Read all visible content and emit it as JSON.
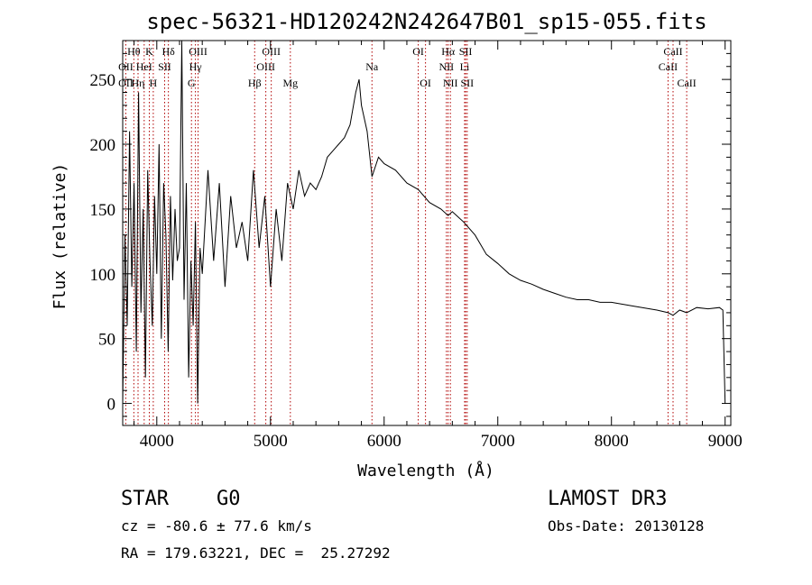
{
  "chart_data": {
    "type": "line",
    "title": "spec-56321-HD120242N242647B01_sp15-055.fits",
    "xlabel": "Wavelength (Å)",
    "ylabel": "Flux (relative)",
    "xlim": [
      3700,
      9050
    ],
    "ylim": [
      -17,
      280
    ],
    "x_ticks": [
      4000,
      5000,
      6000,
      7000,
      8000,
      9000
    ],
    "y_ticks": [
      0,
      50,
      100,
      150,
      200,
      250
    ],
    "grid": false,
    "series": [
      {
        "name": "spectrum",
        "x": [
          3700,
          3720,
          3740,
          3760,
          3780,
          3800,
          3820,
          3840,
          3860,
          3880,
          3900,
          3920,
          3940,
          3960,
          3980,
          4000,
          4020,
          4040,
          4060,
          4080,
          4100,
          4120,
          4140,
          4160,
          4180,
          4200,
          4220,
          4240,
          4260,
          4280,
          4300,
          4320,
          4340,
          4360,
          4380,
          4400,
          4450,
          4500,
          4550,
          4600,
          4650,
          4700,
          4750,
          4800,
          4850,
          4900,
          4950,
          5000,
          5050,
          5100,
          5150,
          5200,
          5250,
          5300,
          5350,
          5400,
          5450,
          5500,
          5550,
          5600,
          5650,
          5700,
          5750,
          5780,
          5800,
          5850,
          5893,
          5950,
          6000,
          6100,
          6200,
          6300,
          6400,
          6500,
          6563,
          6600,
          6700,
          6800,
          6900,
          7000,
          7100,
          7200,
          7300,
          7400,
          7500,
          7600,
          7700,
          7800,
          7900,
          8000,
          8200,
          8400,
          8498,
          8542,
          8600,
          8662,
          8750,
          8850,
          8950,
          8980,
          9000
        ],
        "y": [
          0,
          130,
          60,
          210,
          90,
          170,
          40,
          240,
          70,
          150,
          20,
          180,
          110,
          60,
          160,
          100,
          200,
          50,
          170,
          130,
          40,
          160,
          95,
          150,
          110,
          120,
          280,
          80,
          170,
          20,
          110,
          60,
          140,
          0,
          120,
          100,
          180,
          110,
          170,
          90,
          160,
          120,
          140,
          110,
          180,
          120,
          160,
          90,
          150,
          110,
          170,
          150,
          180,
          160,
          170,
          165,
          175,
          190,
          195,
          200,
          205,
          215,
          240,
          250,
          230,
          210,
          175,
          190,
          185,
          180,
          170,
          165,
          155,
          150,
          145,
          148,
          140,
          130,
          115,
          108,
          100,
          95,
          92,
          88,
          85,
          82,
          80,
          80,
          78,
          78,
          75,
          72,
          70,
          68,
          72,
          70,
          74,
          73,
          74,
          72,
          0
        ]
      }
    ],
    "line_labels": [
      {
        "label": "Hθ",
        "wave": 3798,
        "row": 0
      },
      {
        "label": "K",
        "wave": 3934,
        "row": 0
      },
      {
        "label": "Hδ",
        "wave": 4102,
        "row": 0
      },
      {
        "label": "OIII",
        "wave": 4363,
        "row": 0
      },
      {
        "label": "OIII",
        "wave": 5007,
        "row": 0
      },
      {
        "label": "Na",
        "wave": 5893,
        "row": 1
      },
      {
        "label": "OI",
        "wave": 6300,
        "row": 0
      },
      {
        "label": "Hα",
        "wave": 6563,
        "row": 0
      },
      {
        "label": "SII",
        "wave": 6717,
        "row": 0
      },
      {
        "label": "CaII",
        "wave": 8542,
        "row": 0
      },
      {
        "label": "OII",
        "wave": 3727,
        "row": 1
      },
      {
        "label": "HeI",
        "wave": 3889,
        "row": 1
      },
      {
        "label": "SII",
        "wave": 4069,
        "row": 1
      },
      {
        "label": "Hγ",
        "wave": 4340,
        "row": 1
      },
      {
        "label": "OIII",
        "wave": 4959,
        "row": 1
      },
      {
        "label": "NII",
        "wave": 6548,
        "row": 1
      },
      {
        "label": "Li",
        "wave": 6708,
        "row": 1
      },
      {
        "label": "CaII",
        "wave": 8498,
        "row": 1
      },
      {
        "label": "OII",
        "wave": 3727,
        "row": 2
      },
      {
        "label": "Hη",
        "wave": 3835,
        "row": 2
      },
      {
        "label": "H",
        "wave": 3969,
        "row": 2
      },
      {
        "label": "G",
        "wave": 4305,
        "row": 2
      },
      {
        "label": "Hβ",
        "wave": 4861,
        "row": 2
      },
      {
        "label": "Mg",
        "wave": 5175,
        "row": 2
      },
      {
        "label": "OI",
        "wave": 6364,
        "row": 2
      },
      {
        "label": "NII",
        "wave": 6583,
        "row": 2
      },
      {
        "label": "SII",
        "wave": 6731,
        "row": 2
      },
      {
        "label": "CaII",
        "wave": 8662,
        "row": 2
      }
    ],
    "line_waves": [
      3727,
      3798,
      3835,
      3889,
      3934,
      3969,
      4069,
      4102,
      4305,
      4340,
      4363,
      4861,
      4959,
      5007,
      5175,
      5893,
      6300,
      6364,
      6548,
      6563,
      6583,
      6708,
      6717,
      6731,
      8498,
      8542,
      8662
    ]
  },
  "info": {
    "class": "STAR",
    "subclass": "G0",
    "survey": "LAMOST DR3",
    "redshift": "cz = -80.6 ± 77.6 km/s",
    "obs_date": "Obs-Date: 20130128",
    "coords": "RA = 179.63221, DEC =  25.27292"
  }
}
